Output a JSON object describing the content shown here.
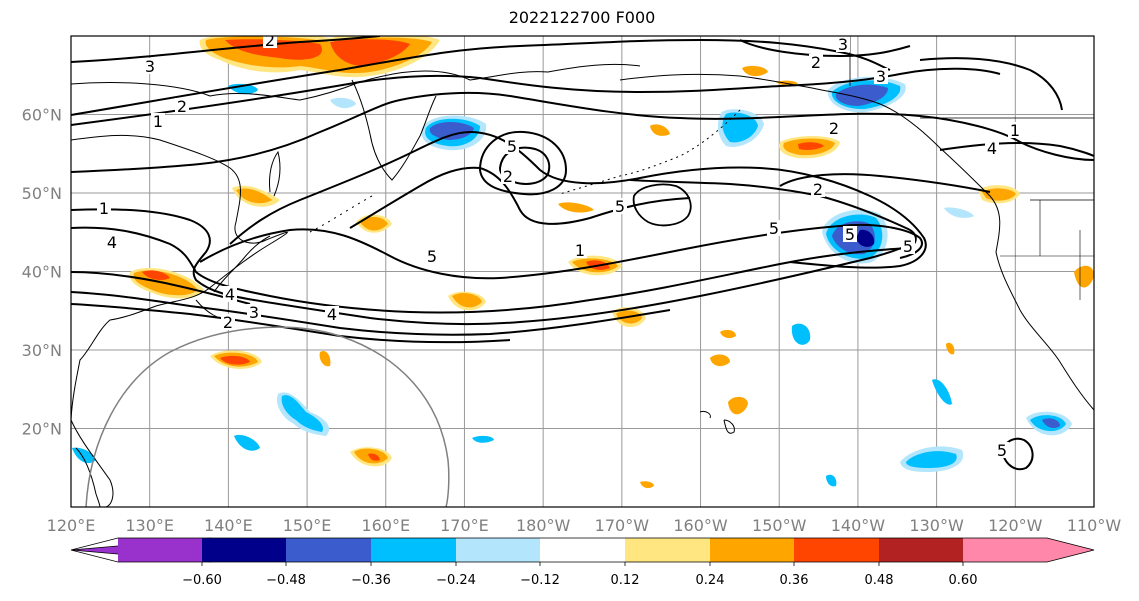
{
  "title": "2022122700 F000",
  "map": {
    "lon_ticks": [
      "120°E",
      "130°E",
      "140°E",
      "150°E",
      "160°E",
      "170°E",
      "180°W",
      "170°W",
      "160°W",
      "150°W",
      "140°W",
      "130°W",
      "120°W",
      "110°W"
    ],
    "lat_ticks": [
      "60°N",
      "50°N",
      "40°N",
      "30°N",
      "20°N"
    ],
    "extent": {
      "lon_min": 120,
      "lon_max": 250,
      "lat_min": 10,
      "lat_max": 70
    },
    "contour_labels": [
      "3",
      "2",
      "1",
      "2",
      "3",
      "2",
      "3",
      "2",
      "1",
      "4",
      "5",
      "5",
      "5",
      "4",
      "2",
      "5",
      "5",
      "4",
      "3",
      "2",
      "1",
      "4",
      "2",
      "1",
      "5",
      "5"
    ]
  },
  "colorbar": {
    "tick_labels": [
      "−0.60",
      "−0.48",
      "−0.36",
      "−0.24",
      "−0.12",
      "0.12",
      "0.24",
      "0.36",
      "0.48",
      "0.60"
    ],
    "colors": [
      "#9932cc",
      "#00008b",
      "#3a5ccc",
      "#00bfff",
      "#b3e5fc",
      "#ffffff",
      "#ffe680",
      "#ffa500",
      "#ff4500",
      "#b22222",
      "#ff88aa"
    ]
  },
  "colors": {
    "neg_strong": "#3a5ccc",
    "neg_mid": "#00bfff",
    "neg_light": "#b3e5fc",
    "pos_light": "#ffe680",
    "pos_mid": "#ffa500",
    "pos_strong": "#ff4500",
    "grid": "#999999",
    "tick_text": "#808080"
  }
}
